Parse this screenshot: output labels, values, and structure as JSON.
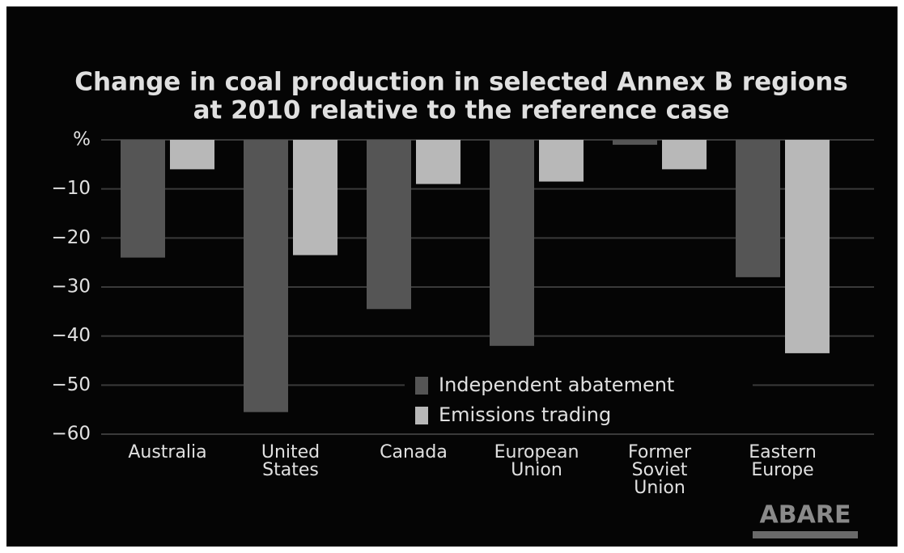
{
  "chart_data": {
    "type": "bar",
    "title": "Change in coal production in selected Annex B regions",
    "subtitle": "at 2010 relative to the reference case",
    "categories": [
      "Australia",
      "United\nStates",
      "Canada",
      "European\nUnion",
      "Former\nSoviet\nUnion",
      "Eastern\nEurope"
    ],
    "series": [
      {
        "name": "Independent abatement",
        "color": "#555555",
        "values": [
          -24,
          -55.5,
          -34.5,
          -42,
          -1,
          -28
        ]
      },
      {
        "name": "Emissions trading",
        "color": "#b8b8b8",
        "values": [
          -6,
          -23.5,
          -9,
          -8.5,
          -6,
          -43.5
        ]
      }
    ],
    "ylim": [
      -60,
      0
    ],
    "yticks": [
      {
        "value": 0,
        "label": "%"
      },
      {
        "value": -10,
        "label": "−10"
      },
      {
        "value": -20,
        "label": "−20"
      },
      {
        "value": -30,
        "label": "−30"
      },
      {
        "value": -40,
        "label": "−40"
      },
      {
        "value": -50,
        "label": "−50"
      },
      {
        "value": -60,
        "label": "−60"
      }
    ],
    "grid": true,
    "logo": "ABARE"
  }
}
